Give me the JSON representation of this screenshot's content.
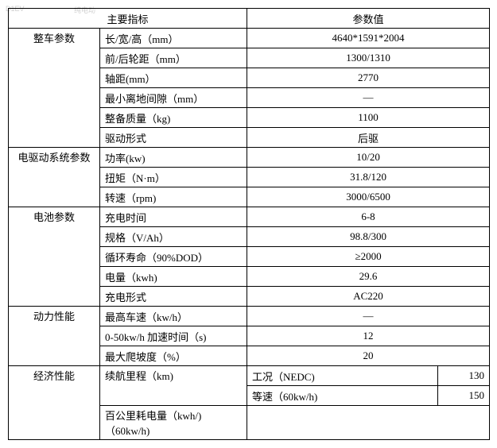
{
  "watermark": {
    "left": "D1EV",
    "right": "纯电动"
  },
  "colwidths": {
    "c1": 115,
    "c2": 185,
    "c3": 305
  },
  "header": {
    "c1": "主要指标",
    "c3": "参数值"
  },
  "rows": [
    {
      "group": "整车参数",
      "rowspan": 6,
      "label": "长/宽/高（mm）",
      "value": "4640*1591*2004"
    },
    {
      "label": "前/后轮距（mm）",
      "value": "1300/1310"
    },
    {
      "label": "轴距(mm）",
      "value": "2770"
    },
    {
      "label": "最小离地间隙（mm）",
      "value": "—"
    },
    {
      "label": "整备质量（kg)",
      "value": "1100"
    },
    {
      "label": "驱动形式",
      "value": "后驱"
    },
    {
      "group": "电驱动系统参数",
      "rowspan": 3,
      "label": "功率(kw)",
      "value": "10/20"
    },
    {
      "label": "扭矩（N·m）",
      "value": "31.8/120"
    },
    {
      "label": "转速（rpm)",
      "value": "3000/6500"
    },
    {
      "group": "电池参数",
      "rowspan": 5,
      "label": "充电时间",
      "value": "6-8"
    },
    {
      "label": "规格（V/Ah）",
      "value": "98.8/300"
    },
    {
      "label": "循环寿命（90%DOD）",
      "value": "≥2000"
    },
    {
      "label": "电量（kwh)",
      "value": "29.6"
    },
    {
      "label": "充电形式",
      "value": "AC220"
    },
    {
      "group": "动力性能",
      "rowspan": 3,
      "label": "最高车速（kw/h）",
      "value": "—"
    },
    {
      "label": "0-50kw/h 加速时间（s)",
      "value": "12"
    },
    {
      "label": "最大爬坡度（%）",
      "value": "20"
    }
  ],
  "econ": {
    "group": "经济性能",
    "row1": {
      "label": "续航里程（km)",
      "sublabel": "工况（NEDC)",
      "subval": "130"
    },
    "row2": {
      "sublabel": "等速（60kw/h)",
      "subval": "150"
    },
    "row3": {
      "label": "百公里耗电量（kwh/)（60kw/h)",
      "value": ""
    }
  }
}
